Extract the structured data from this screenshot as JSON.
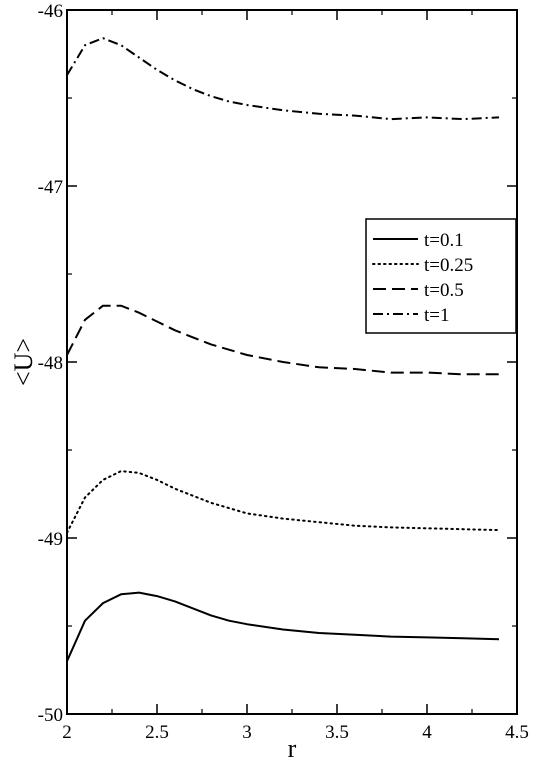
{
  "chart_data": {
    "type": "line",
    "title": "",
    "xlabel": "r",
    "ylabel": "<U>",
    "xlim": [
      2,
      4.5
    ],
    "ylim": [
      -50,
      -46
    ],
    "x_ticks": [
      "2",
      "2.5",
      "3",
      "3.5",
      "4",
      "4.5"
    ],
    "y_ticks": [
      "-50",
      "-49",
      "-48",
      "-47",
      "-46"
    ],
    "grid": false,
    "legend_position": "right",
    "series": [
      {
        "name": "t=0.1",
        "style": "solid",
        "x": [
          2.0,
          2.1,
          2.2,
          2.3,
          2.4,
          2.5,
          2.6,
          2.7,
          2.8,
          2.9,
          3.0,
          3.2,
          3.4,
          3.6,
          3.8,
          4.0,
          4.2,
          4.4
        ],
        "y": [
          -49.7,
          -49.47,
          -49.37,
          -49.32,
          -49.31,
          -49.33,
          -49.36,
          -49.4,
          -49.44,
          -49.47,
          -49.49,
          -49.52,
          -49.54,
          -49.55,
          -49.56,
          -49.565,
          -49.57,
          -49.575
        ]
      },
      {
        "name": "t=0.25",
        "style": "dotted",
        "x": [
          2.0,
          2.1,
          2.2,
          2.3,
          2.4,
          2.5,
          2.6,
          2.7,
          2.8,
          2.9,
          3.0,
          3.2,
          3.4,
          3.6,
          3.8,
          4.0,
          4.2,
          4.4
        ],
        "y": [
          -48.97,
          -48.77,
          -48.67,
          -48.62,
          -48.63,
          -48.67,
          -48.72,
          -48.76,
          -48.8,
          -48.83,
          -48.86,
          -48.89,
          -48.91,
          -48.93,
          -48.94,
          -48.945,
          -48.95,
          -48.955
        ]
      },
      {
        "name": "t=0.5",
        "style": "dashed",
        "x": [
          2.0,
          2.1,
          2.2,
          2.3,
          2.4,
          2.5,
          2.6,
          2.7,
          2.8,
          2.9,
          3.0,
          3.2,
          3.4,
          3.6,
          3.8,
          4.0,
          4.2,
          4.4
        ],
        "y": [
          -47.96,
          -47.76,
          -47.68,
          -47.68,
          -47.72,
          -47.77,
          -47.82,
          -47.86,
          -47.9,
          -47.93,
          -47.96,
          -48.0,
          -48.03,
          -48.04,
          -48.06,
          -48.06,
          -48.07,
          -48.07
        ]
      },
      {
        "name": "t=1",
        "style": "dashdot",
        "x": [
          2.0,
          2.1,
          2.2,
          2.3,
          2.4,
          2.5,
          2.6,
          2.7,
          2.8,
          2.9,
          3.0,
          3.2,
          3.4,
          3.6,
          3.8,
          4.0,
          4.2,
          4.4
        ],
        "y": [
          -46.37,
          -46.2,
          -46.16,
          -46.2,
          -46.27,
          -46.34,
          -46.4,
          -46.45,
          -46.49,
          -46.52,
          -46.54,
          -46.57,
          -46.59,
          -46.6,
          -46.62,
          -46.61,
          -46.62,
          -46.61
        ]
      }
    ]
  },
  "colors": {
    "background": "#ffffff",
    "line": "#000000"
  }
}
